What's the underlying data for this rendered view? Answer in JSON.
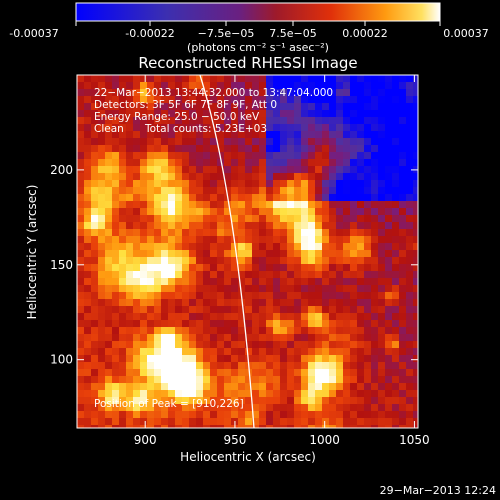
{
  "colorbar": {
    "ticks": [
      "-0.00037",
      "-0.00022",
      "−7.5e−05",
      "7.5e−05",
      "0.00022",
      "0.00037"
    ],
    "unit_label": "(photons cm⁻² s⁻¹ asec⁻²)"
  },
  "annotations": {
    "time_range": "22−Mar−2013 13:44:32.000 to 13:47:04.000",
    "detectors": "Detectors: 3F 5F 6F 7F 8F 9F, Att 0",
    "energy": "Energy Range: 25.0 − 50.0 keV",
    "clean": "Clean",
    "counts": "Total counts: 5.23E+03",
    "peak": "Position of Peak = [910,226]"
  },
  "footer": {
    "date": "29−Mar−2013 12:24"
  },
  "chart_data": {
    "type": "heatmap",
    "title": "Reconstructed RHESSI Image",
    "xlabel": "Heliocentric X (arcsec)",
    "ylabel": "Heliocentric Y (arcsec)",
    "xlim": [
      862,
      1052
    ],
    "ylim": [
      64,
      250
    ],
    "xticks": [
      900,
      950,
      1000,
      1050
    ],
    "yticks": [
      100,
      150,
      200
    ],
    "clim": [
      -0.00037,
      0.00037
    ],
    "colormap_colors": [
      "#0000ff",
      "#5030a0",
      "#7a1c7a",
      "#b3120f",
      "#e8400a",
      "#ff9a10",
      "#ffe040",
      "#ffffff"
    ],
    "limb_curve_color": "#ffffff",
    "peak_position": [
      910,
      226
    ]
  }
}
